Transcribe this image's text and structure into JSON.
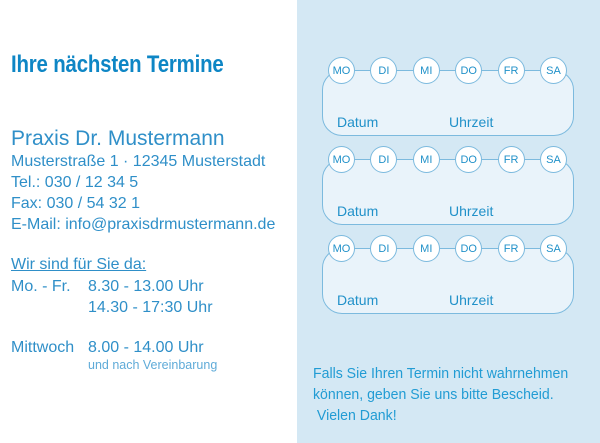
{
  "card": {
    "title": "Ihre nächsten Termine",
    "practice": {
      "name": "Praxis Dr. Mustermann",
      "address": "Musterstraße 1 · 12345 Musterstadt",
      "phone": "Tel.: 030 / 12 34 5",
      "fax": "Fax: 030 / 54 32 1",
      "email": "E-Mail: info@praxisdrmustermann.de"
    },
    "hours": {
      "heading": "Wir sind für Sie da:",
      "rows": [
        {
          "label": "Mo. - Fr.",
          "time": "8.30 - 13.00 Uhr",
          "small": false,
          "gap": false
        },
        {
          "label": "",
          "time": "14.30 - 17:30 Uhr",
          "small": false,
          "gap": false
        },
        {
          "label": "Mittwoch",
          "time": "8.00 - 14.00 Uhr",
          "small": false,
          "gap": true
        },
        {
          "label": "",
          "time": "und nach Vereinbarung",
          "small": true,
          "gap": false
        }
      ]
    }
  },
  "appointments": {
    "weekdays": [
      "MO",
      "DI",
      "MI",
      "DO",
      "FR",
      "SA"
    ],
    "slot_count": 3,
    "date_label": "Datum",
    "time_label": "Uhrzeit",
    "note_lines": [
      "Falls Sie Ihren Termin nicht wahrnehmen",
      "können, geben Sie uns bitte Bescheid.",
      " Vielen Dank!"
    ]
  },
  "colors": {
    "title_blue": "#0e86c5",
    "body_blue": "#2f8fc8",
    "note_blue": "#229cd4",
    "muted_blue": "#5fabd8",
    "panel_bg": "#d4e8f4",
    "slot_bg": "#e9f3fa",
    "line_blue": "#7cbade",
    "label_blue": "#2191c9"
  }
}
